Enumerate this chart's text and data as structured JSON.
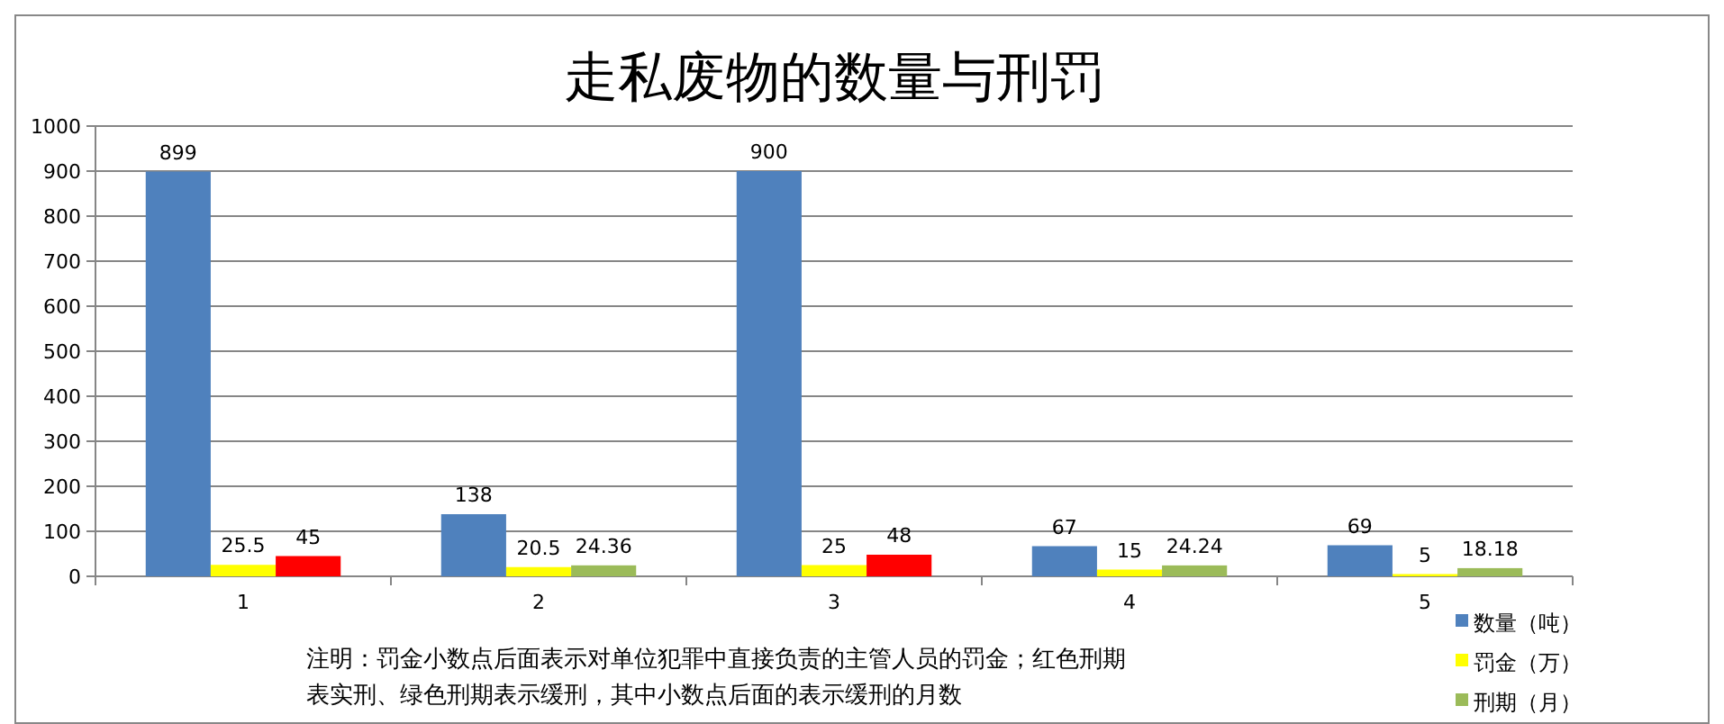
{
  "chart_data": {
    "type": "bar",
    "title": "走私废物的数量与刑罚",
    "categories": [
      "1",
      "2",
      "3",
      "4",
      "5"
    ],
    "series": [
      {
        "name": "数量（吨）",
        "color": "#4f81bd",
        "values": [
          899,
          138,
          900,
          67,
          69
        ]
      },
      {
        "name": "罚金（万）",
        "color": "#ffff00",
        "values": [
          25.5,
          20.5,
          25,
          15,
          5
        ]
      },
      {
        "name": "刑期（月）",
        "color": "#9bbb59",
        "colors": [
          "#ff0000",
          "#9bbb59",
          "#ff0000",
          "#9bbb59",
          "#9bbb59"
        ],
        "values": [
          45,
          24.36,
          48,
          24.24,
          18.18
        ]
      }
    ],
    "ylim": [
      0,
      1000
    ],
    "yticks": [
      0,
      100,
      200,
      300,
      400,
      500,
      600,
      700,
      800,
      900,
      1000
    ],
    "grid": "y",
    "legend": "bottom right",
    "data_labels": true,
    "annotations": [
      "注明：罚金小数点后面表示对单位犯罪中直接负责的主管人员的罚金；红色刑期表实刑、绿色刑期表示缓刑，其中小数点后面的表示缓刑的月数"
    ]
  }
}
